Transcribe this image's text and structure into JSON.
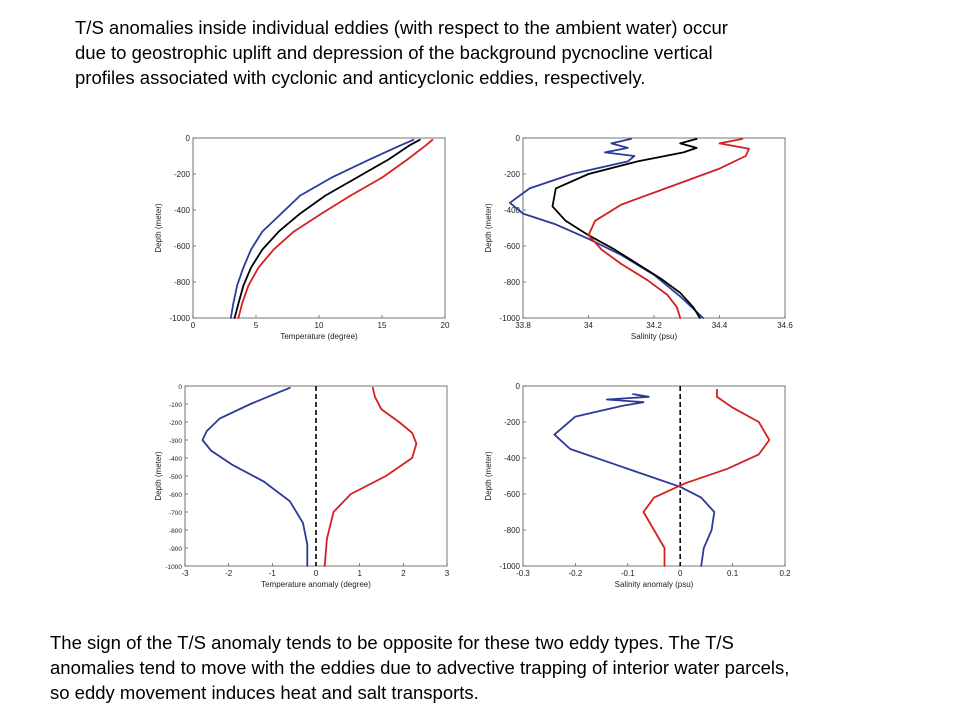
{
  "text": {
    "top": "T/S anomalies inside individual eddies (with respect to the ambient water) occur\ndue to geostrophic uplift and depression of the background pycnocline vertical\nprofiles associated with cyclonic and anticyclonic eddies, respectively.",
    "bottom": "The sign of the T/S anomaly tends to be opposite for these two eddy types. The T/S\nanomalies tend to move with the eddies due to advective trapping of interior water parcels,\nso eddy movement induces heat and salt transports."
  },
  "chart_data": [
    {
      "type": "line",
      "xlabel": "Temperature (degree)",
      "ylabel": "Depth (meter)",
      "xlim": [
        0,
        20
      ],
      "ylim": [
        -1000,
        0
      ],
      "xticks": [
        "0",
        "5",
        "10",
        "15",
        "20"
      ],
      "xtickvals": [
        0,
        5,
        10,
        15,
        20
      ],
      "yticks": [
        "0",
        "-200",
        "-400",
        "-600",
        "-800",
        "-1000"
      ],
      "ytickvals": [
        0,
        -200,
        -400,
        -600,
        -800,
        -1000
      ],
      "series": [
        {
          "color": "#2b3a9a",
          "x": [
            17.5,
            16.5,
            14.0,
            11.0,
            8.5,
            7.0,
            5.5,
            4.6,
            4.0,
            3.5,
            3.2,
            3.0
          ],
          "y": [
            -10,
            -40,
            -120,
            -220,
            -320,
            -420,
            -520,
            -620,
            -720,
            -820,
            -920,
            -1000
          ]
        },
        {
          "color": "#000000",
          "x": [
            18.0,
            17.2,
            15.5,
            13.0,
            10.5,
            8.5,
            6.8,
            5.5,
            4.6,
            4.0,
            3.6,
            3.3
          ],
          "y": [
            -10,
            -40,
            -120,
            -220,
            -320,
            -420,
            -520,
            -620,
            -720,
            -820,
            -920,
            -1000
          ]
        },
        {
          "color": "#d32020",
          "x": [
            19.0,
            18.5,
            17.0,
            15.0,
            12.5,
            10.2,
            8.0,
            6.4,
            5.2,
            4.4,
            3.9,
            3.6
          ],
          "y": [
            -10,
            -40,
            -120,
            -220,
            -320,
            -420,
            -520,
            -620,
            -720,
            -820,
            -920,
            -1000
          ]
        }
      ]
    },
    {
      "type": "line",
      "xlabel": "Salinity (psu)",
      "ylabel": "Depth (meter)",
      "xlim": [
        33.8,
        34.6
      ],
      "ylim": [
        -1000,
        0
      ],
      "xticks": [
        "33.8",
        "34",
        "34.2",
        "34.4",
        "34.6"
      ],
      "xtickvals": [
        33.8,
        34.0,
        34.2,
        34.4,
        34.6
      ],
      "yticks": [
        "0",
        "-200",
        "-400",
        "-600",
        "-800",
        "-1000"
      ],
      "ytickvals": [
        0,
        -200,
        -400,
        -600,
        -800,
        -1000
      ],
      "series": [
        {
          "color": "#2b3a9a",
          "x": [
            34.13,
            34.07,
            34.12,
            34.05,
            34.14,
            34.12,
            33.95,
            33.82,
            33.76,
            33.8,
            33.9,
            34.0,
            34.1,
            34.2,
            34.28,
            34.35
          ],
          "y": [
            -5,
            -30,
            -55,
            -80,
            -100,
            -130,
            -200,
            -280,
            -360,
            -420,
            -480,
            -560,
            -650,
            -760,
            -880,
            -1000
          ]
        },
        {
          "color": "#000000",
          "x": [
            34.33,
            34.28,
            34.33,
            34.29,
            34.15,
            34.0,
            33.9,
            33.89,
            33.93,
            34.0,
            34.08,
            34.15,
            34.22,
            34.28,
            34.32,
            34.34
          ],
          "y": [
            -5,
            -30,
            -55,
            -80,
            -130,
            -200,
            -280,
            -380,
            -460,
            -540,
            -620,
            -700,
            -780,
            -860,
            -940,
            -1000
          ]
        },
        {
          "color": "#d32020",
          "x": [
            34.47,
            34.4,
            34.49,
            34.48,
            34.4,
            34.25,
            34.1,
            34.02,
            34.0,
            34.04,
            34.1,
            34.18,
            34.24,
            34.27,
            34.28
          ],
          "y": [
            -5,
            -30,
            -60,
            -100,
            -170,
            -270,
            -370,
            -460,
            -540,
            -620,
            -700,
            -790,
            -870,
            -940,
            -1000
          ]
        }
      ]
    },
    {
      "type": "line",
      "xlabel": "Temperature anomaly (degree)",
      "ylabel": "Depth (meter)",
      "xlim": [
        -3,
        3
      ],
      "ylim": [
        -1000,
        0
      ],
      "xticks": [
        "-3",
        "-2",
        "-1",
        "0",
        "1",
        "2",
        "3"
      ],
      "xtickvals": [
        -3,
        -2,
        -1,
        0,
        1,
        2,
        3
      ],
      "yticks": [
        "0",
        "-100",
        "-200",
        "-300",
        "-400",
        "-500",
        "-600",
        "-700",
        "-800",
        "-900",
        "-1000"
      ],
      "ytickvals": [
        0,
        -100,
        -200,
        -300,
        -400,
        -500,
        -600,
        -700,
        -800,
        -900,
        -1000
      ],
      "reference_line": {
        "x": 0,
        "style": "dashed",
        "color": "#000000"
      },
      "series": [
        {
          "color": "#2b3a9a",
          "x": [
            -0.6,
            -0.9,
            -1.5,
            -2.2,
            -2.5,
            -2.6,
            -2.4,
            -1.9,
            -1.2,
            -0.6,
            -0.3,
            -0.2,
            -0.2
          ],
          "y": [
            -10,
            -40,
            -100,
            -180,
            -250,
            -300,
            -360,
            -440,
            -530,
            -640,
            -760,
            -880,
            -1000
          ]
        },
        {
          "color": "#d32020",
          "x": [
            1.3,
            1.35,
            1.5,
            1.9,
            2.2,
            2.3,
            2.2,
            1.6,
            0.8,
            0.4,
            0.25,
            0.2
          ],
          "y": [
            -10,
            -60,
            -130,
            -200,
            -260,
            -320,
            -400,
            -500,
            -600,
            -700,
            -850,
            -1000
          ]
        }
      ]
    },
    {
      "type": "line",
      "xlabel": "Salinity anomaly (psu)",
      "ylabel": "Depth (meter)",
      "xlim": [
        -0.3,
        0.2
      ],
      "ylim": [
        -1000,
        0
      ],
      "xticks": [
        "-0.3",
        "-0.2",
        "-0.1",
        "0",
        "0.1",
        "0.2"
      ],
      "xtickvals": [
        -0.3,
        -0.2,
        -0.1,
        0,
        0.1,
        0.2
      ],
      "yticks": [
        "0",
        "-200",
        "-400",
        "-600",
        "-800",
        "-1000"
      ],
      "ytickvals": [
        0,
        -200,
        -400,
        -600,
        -800,
        -1000
      ],
      "reference_line": {
        "x": 0,
        "style": "dashed",
        "color": "#000000"
      },
      "series": [
        {
          "color": "#2b3a9a",
          "x": [
            -0.09,
            -0.06,
            -0.14,
            -0.07,
            -0.11,
            -0.2,
            -0.24,
            -0.21,
            -0.12,
            -0.04,
            0.0,
            0.04,
            0.065,
            0.06,
            0.045,
            0.04
          ],
          "y": [
            -45,
            -60,
            -75,
            -90,
            -110,
            -170,
            -270,
            -350,
            -440,
            -520,
            -560,
            -620,
            -700,
            -800,
            -900,
            -1000
          ]
        },
        {
          "color": "#d32020",
          "x": [
            0.07,
            0.07,
            0.1,
            0.15,
            0.17,
            0.15,
            0.09,
            0.01,
            -0.05,
            -0.07,
            -0.05,
            -0.03,
            -0.03
          ],
          "y": [
            -20,
            -60,
            -120,
            -200,
            -300,
            -380,
            -460,
            -540,
            -620,
            -700,
            -800,
            -900,
            -1000
          ]
        }
      ]
    }
  ]
}
